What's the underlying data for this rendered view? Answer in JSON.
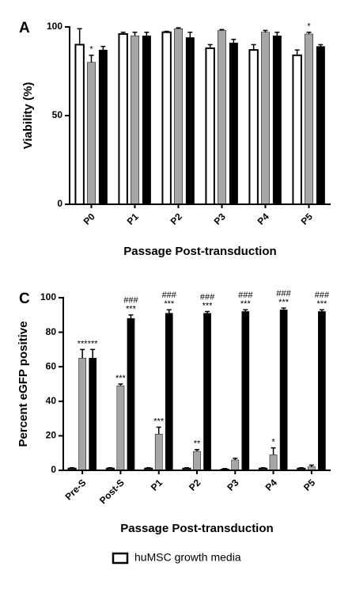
{
  "chart_data": [
    {
      "type": "bar",
      "panel": "A",
      "ylabel": "Viability (%)",
      "xlabel": "Passage Post-transduction",
      "categories": [
        "P0",
        "P1",
        "P2",
        "P3",
        "P4",
        "P5"
      ],
      "ylim": [
        0,
        100
      ],
      "yticks": [
        0,
        50,
        100
      ],
      "series": [
        {
          "color": "#ffffff",
          "values": [
            90,
            96,
            97,
            88,
            87,
            84
          ],
          "error": [
            9,
            1,
            0.5,
            2,
            3,
            3
          ],
          "annotations": [
            null,
            null,
            null,
            null,
            null,
            null
          ]
        },
        {
          "color": "#a6a6a6",
          "values": [
            80,
            95,
            99,
            98,
            97,
            96
          ],
          "error": [
            4,
            2,
            0.5,
            0.5,
            1,
            1
          ],
          "annotations": [
            [
              "*"
            ],
            null,
            null,
            null,
            null,
            [
              "*"
            ]
          ]
        },
        {
          "color": "#000000",
          "values": [
            87,
            95,
            94,
            91,
            95,
            89
          ],
          "error": [
            2,
            2,
            3,
            2,
            2,
            1
          ],
          "annotations": [
            null,
            null,
            null,
            null,
            null,
            null
          ]
        }
      ]
    },
    {
      "type": "bar",
      "panel": "C",
      "ylabel": "Percent eGFP positive",
      "xlabel": "Passage Post-transduction",
      "categories": [
        "Pre-S",
        "Post-S",
        "P1",
        "P2",
        "P3",
        "P4",
        "P5"
      ],
      "ylim": [
        0,
        100
      ],
      "yticks": [
        0,
        20,
        40,
        60,
        80,
        100
      ],
      "series": [
        {
          "name": "huMSC growth media",
          "color": "#ffffff",
          "values": [
            1,
            1,
            1,
            1,
            0.5,
            1,
            1
          ],
          "error": [
            0.5,
            0.5,
            0.5,
            0.5,
            0.5,
            0.5,
            0.5
          ],
          "annotations": [
            null,
            null,
            null,
            null,
            null,
            null,
            null
          ]
        },
        {
          "color": "#a6a6a6",
          "values": [
            65,
            49,
            21,
            11,
            6,
            9,
            2
          ],
          "error": [
            5,
            1,
            4,
            1,
            1,
            4,
            1
          ],
          "annotations": [
            [
              "***"
            ],
            [
              "***"
            ],
            [
              "***"
            ],
            [
              "**"
            ],
            null,
            [
              "*"
            ],
            null
          ]
        },
        {
          "color": "#000000",
          "values": [
            65,
            88,
            91,
            91,
            92,
            93,
            92
          ],
          "error": [
            5,
            2,
            2,
            1,
            1,
            1,
            1
          ],
          "annotations": [
            [
              "***"
            ],
            [
              "###",
              "***"
            ],
            [
              "###",
              "***"
            ],
            [
              "###",
              "***"
            ],
            [
              "###",
              "***"
            ],
            [
              "###",
              "***"
            ],
            [
              "###",
              "***"
            ]
          ]
        }
      ]
    }
  ]
}
